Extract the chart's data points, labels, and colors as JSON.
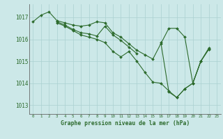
{
  "title": "Graphe pression niveau de la mer (hPa)",
  "bg_color": "#cce8e8",
  "grid_color": "#aad0d0",
  "line_color": "#2d6b2d",
  "ylim": [
    1012.6,
    1017.6
  ],
  "yticks": [
    1013,
    1014,
    1015,
    1016,
    1017
  ],
  "xlim": [
    -0.5,
    23.5
  ],
  "xticks": [
    0,
    1,
    2,
    3,
    4,
    5,
    6,
    7,
    8,
    9,
    10,
    11,
    12,
    13,
    14,
    15,
    16,
    17,
    18,
    19,
    20,
    21,
    22,
    23
  ],
  "series": [
    {
      "x": [
        0,
        1,
        2,
        3,
        4,
        5,
        6,
        7,
        8,
        9,
        10,
        11,
        12,
        13,
        14,
        15,
        16,
        17,
        18,
        19,
        20,
        21,
        22
      ],
      "y": [
        1016.8,
        1017.1,
        1017.25,
        1016.85,
        1016.75,
        1016.65,
        1016.6,
        1016.65,
        1016.8,
        1016.75,
        1016.3,
        1016.1,
        1015.8,
        1015.5,
        1015.3,
        1015.1,
        1015.8,
        1016.5,
        1016.5,
        1016.1,
        1014.0,
        1015.0,
        1015.6
      ]
    },
    {
      "x": [
        3,
        4,
        5,
        6,
        7,
        8,
        9,
        10,
        11,
        12,
        13
      ],
      "y": [
        1016.8,
        1016.65,
        1016.45,
        1016.3,
        1016.25,
        1016.15,
        1016.6,
        1016.2,
        1015.95,
        1015.65,
        1015.35
      ]
    },
    {
      "x": [
        3,
        4,
        5,
        6,
        7,
        8,
        9,
        10,
        11,
        12,
        13,
        14,
        15,
        16,
        17,
        18,
        19,
        20,
        21,
        22
      ],
      "y": [
        1016.75,
        1016.6,
        1016.4,
        1016.2,
        1016.1,
        1016.0,
        1015.85,
        1015.45,
        1015.2,
        1015.45,
        1015.0,
        1014.5,
        1014.05,
        1014.0,
        1013.65,
        1013.35,
        1013.75,
        1014.0,
        1015.0,
        1015.55
      ]
    },
    {
      "x": [
        16,
        17,
        18,
        19,
        20,
        21,
        22
      ],
      "y": [
        1015.85,
        1013.6,
        1013.35,
        1013.75,
        1014.0,
        1015.0,
        1015.55
      ]
    }
  ]
}
